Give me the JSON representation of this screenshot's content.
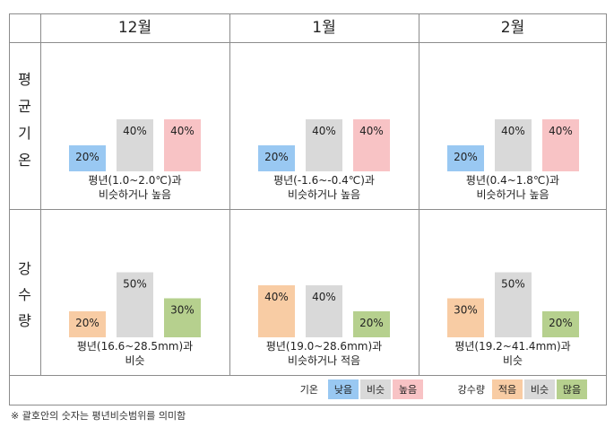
{
  "months": [
    "12월",
    "1월",
    "2월"
  ],
  "row_labels": [
    {
      "text": "평균기온",
      "chars": [
        "평",
        "균",
        "기",
        "온"
      ]
    },
    {
      "text": "강수량",
      "chars": [
        "강",
        "수",
        "량"
      ]
    }
  ],
  "legend": {
    "temperature": {
      "title": "기온",
      "items": [
        "낮음",
        "비슷",
        "높음"
      ]
    },
    "precipitation": {
      "title": "강수량",
      "items": [
        "적음",
        "비슷",
        "많음"
      ]
    }
  },
  "note": "※ 괄호안의 숫자는 평년비슷범위를 의미함",
  "colors": {
    "temp_low": "#99c8f2",
    "similar": "#d9d9d9",
    "temp_high": "#f8c3c5",
    "precip_low": "#f8cca4",
    "precip_high": "#b6d08e",
    "grid": "#8c8c8c"
  },
  "chart_data": [
    {
      "type": "bar",
      "variable": "평균기온",
      "month": "12월",
      "categories": [
        "낮음",
        "비슷",
        "높음"
      ],
      "values": [
        20,
        40,
        40
      ],
      "value_labels": [
        "20%",
        "40%",
        "40%"
      ],
      "caption": [
        "평년(1.0~2.0℃)과",
        "비슷하거나 높음"
      ]
    },
    {
      "type": "bar",
      "variable": "평균기온",
      "month": "1월",
      "categories": [
        "낮음",
        "비슷",
        "높음"
      ],
      "values": [
        20,
        40,
        40
      ],
      "value_labels": [
        "20%",
        "40%",
        "40%"
      ],
      "caption": [
        "평년(-1.6~-0.4℃)과",
        "비슷하거나 높음"
      ]
    },
    {
      "type": "bar",
      "variable": "평균기온",
      "month": "2월",
      "categories": [
        "낮음",
        "비슷",
        "높음"
      ],
      "values": [
        20,
        40,
        40
      ],
      "value_labels": [
        "20%",
        "40%",
        "40%"
      ],
      "caption": [
        "평년(0.4~1.8℃)과",
        "비슷하거나 높음"
      ]
    },
    {
      "type": "bar",
      "variable": "강수량",
      "month": "12월",
      "categories": [
        "적음",
        "비슷",
        "많음"
      ],
      "values": [
        20,
        50,
        30
      ],
      "value_labels": [
        "20%",
        "50%",
        "30%"
      ],
      "caption": [
        "평년(16.6~28.5mm)과",
        "비슷"
      ]
    },
    {
      "type": "bar",
      "variable": "강수량",
      "month": "1월",
      "categories": [
        "적음",
        "비슷",
        "많음"
      ],
      "values": [
        40,
        40,
        20
      ],
      "value_labels": [
        "40%",
        "40%",
        "20%"
      ],
      "caption": [
        "평년(19.0~28.6mm)과",
        "비슷하거나 적음"
      ]
    },
    {
      "type": "bar",
      "variable": "강수량",
      "month": "2월",
      "categories": [
        "적음",
        "비슷",
        "많음"
      ],
      "values": [
        30,
        50,
        20
      ],
      "value_labels": [
        "30%",
        "50%",
        "20%"
      ],
      "caption": [
        "평년(19.2~41.4mm)과",
        "비슷"
      ]
    }
  ]
}
